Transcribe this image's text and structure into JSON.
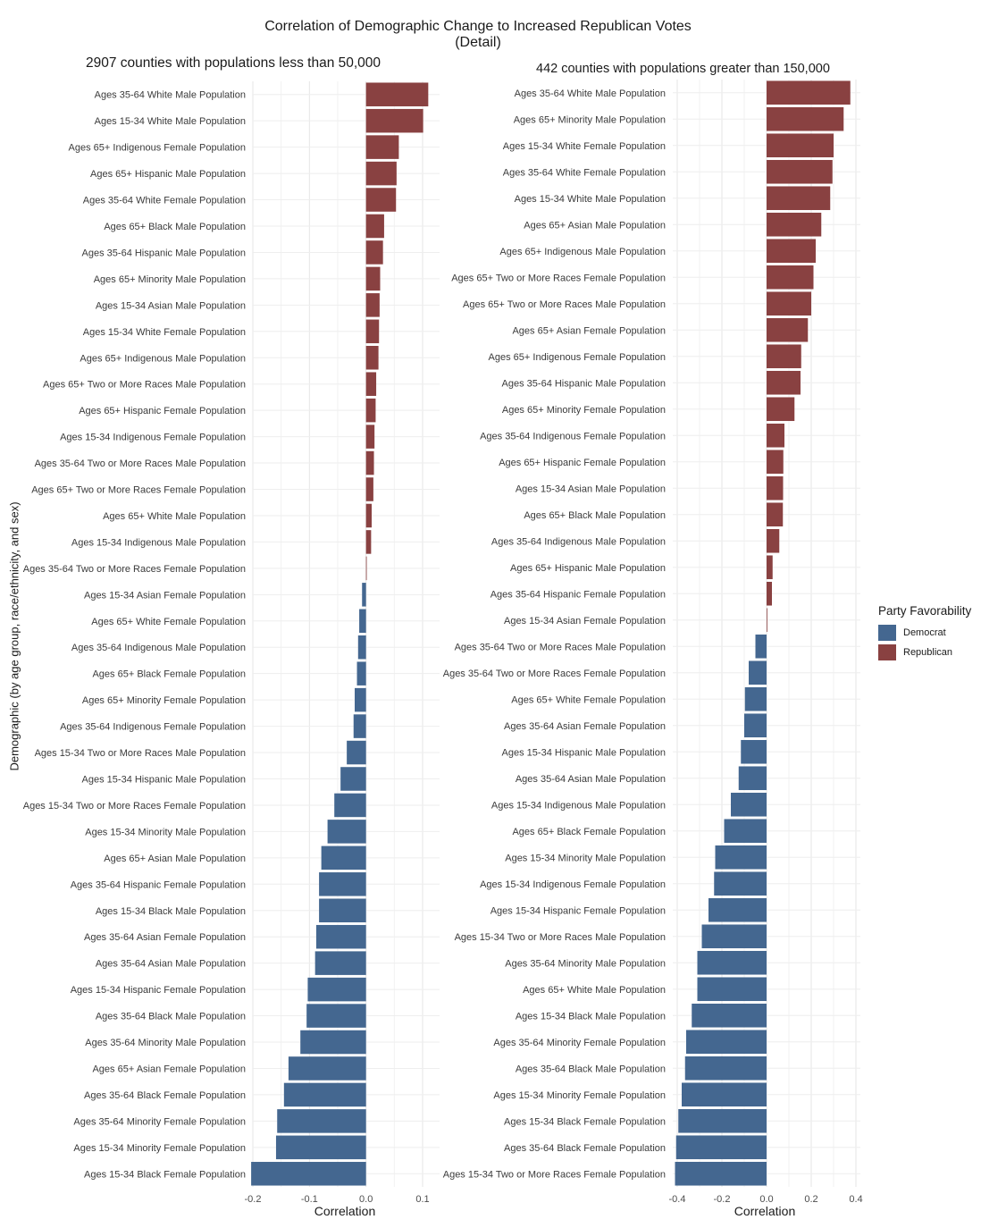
{
  "title": "Correlation of Demographic Change to Increased Republican Votes",
  "subtitle": "(Detail)",
  "ylabel": "Demographic (by age group, race/ethnicity, and sex)",
  "legend": {
    "title": "Party Favorability",
    "items": [
      {
        "label": "Democrat",
        "color": "#446790"
      },
      {
        "label": "Republican",
        "color": "#894141"
      }
    ]
  },
  "chart_data": [
    {
      "type": "bar",
      "orientation": "horizontal",
      "title": "2907 counties with populations less than 50,000",
      "xlabel": "Correlation",
      "xlim": [
        -0.2,
        0.13
      ],
      "xticks": [
        -0.2,
        -0.1,
        0.0,
        0.1
      ],
      "xtick_labels": [
        "-0.2",
        "-0.1",
        "0.0",
        "0.1"
      ],
      "categories": [
        "Ages 35-64 White Male Population",
        "Ages 15-34 White Male Population",
        "Ages 65+ Indigenous Female Population",
        "Ages 65+ Hispanic Male Population",
        "Ages 35-64 White Female Population",
        "Ages 65+ Black Male Population",
        "Ages 35-64 Hispanic Male Population",
        "Ages 65+ Minority Male Population",
        "Ages 15-34 Asian Male Population",
        "Ages 15-34 White Female Population",
        "Ages 65+ Indigenous Male Population",
        "Ages 65+ Two or More Races Male Population",
        "Ages 65+ Hispanic Female Population",
        "Ages 15-34 Indigenous Female Population",
        "Ages 35-64 Two or More Races Male Population",
        "Ages 65+ Two or More Races Female Population",
        "Ages 65+ White Male Population",
        "Ages 15-34 Indigenous Male Population",
        "Ages 35-64 Two or More Races Female Population",
        "Ages 15-34 Asian Female Population",
        "Ages 65+ White Female Population",
        "Ages 35-64 Indigenous Male Population",
        "Ages 65+ Black Female Population",
        "Ages 65+ Minority Female Population",
        "Ages 35-64 Indigenous Female Population",
        "Ages 15-34 Two or More Races Male Population",
        "Ages 15-34 Hispanic Male Population",
        "Ages 15-34 Two or More Races Female Population",
        "Ages 15-34 Minority Male Population",
        "Ages 65+ Asian Male Population",
        "Ages 35-64 Hispanic Female Population",
        "Ages 15-34 Black Male Population",
        "Ages 35-64 Asian Female Population",
        "Ages 35-64 Asian Male Population",
        "Ages 15-34 Hispanic Female Population",
        "Ages 35-64 Black Male Population",
        "Ages 35-64 Minority Male Population",
        "Ages 65+ Asian Female Population",
        "Ages 35-64 Black Female Population",
        "Ages 35-64 Minority Female Population",
        "Ages 15-34 Minority Female Population",
        "Ages 15-34 Black Female Population"
      ],
      "values": [
        0.11,
        0.101,
        0.058,
        0.054,
        0.053,
        0.032,
        0.03,
        0.025,
        0.024,
        0.023,
        0.022,
        0.018,
        0.017,
        0.015,
        0.014,
        0.013,
        0.01,
        0.009,
        0.001,
        -0.007,
        -0.012,
        -0.014,
        -0.016,
        -0.02,
        -0.022,
        -0.034,
        -0.045,
        -0.056,
        -0.068,
        -0.079,
        -0.083,
        -0.083,
        -0.088,
        -0.09,
        -0.103,
        -0.105,
        -0.116,
        -0.137,
        -0.145,
        -0.157,
        -0.159,
        -0.203
      ]
    },
    {
      "type": "bar",
      "orientation": "horizontal",
      "title": "442 counties with populations greater than 150,000",
      "xlabel": "Correlation",
      "xlim": [
        -0.42,
        0.42
      ],
      "xticks": [
        -0.4,
        -0.2,
        0.0,
        0.2,
        0.4
      ],
      "xtick_labels": [
        "-0.4",
        "-0.2",
        "0.0",
        "0.2",
        "0.4"
      ],
      "categories": [
        "Ages 35-64 White Male Population",
        "Ages 65+ Minority Male Population",
        "Ages 15-34 White Female Population",
        "Ages 35-64 White Female Population",
        "Ages 15-34 White Male Population",
        "Ages 65+ Asian Male Population",
        "Ages 65+ Indigenous Male Population",
        "Ages 65+ Two or More Races Female Population",
        "Ages 65+ Two or More Races Male Population",
        "Ages 65+ Asian Female Population",
        "Ages 65+ Indigenous Female Population",
        "Ages 35-64 Hispanic Male Population",
        "Ages 65+ Minority Female Population",
        "Ages 35-64 Indigenous Female Population",
        "Ages 65+ Hispanic Female Population",
        "Ages 15-34 Asian Male Population",
        "Ages 65+ Black Male Population",
        "Ages 35-64 Indigenous Male Population",
        "Ages 65+ Hispanic Male Population",
        "Ages 35-64 Hispanic Female Population",
        "Ages 15-34 Asian Female Population",
        "Ages 35-64 Two or More Races Male Population",
        "Ages 35-64 Two or More Races Female Population",
        "Ages 65+ White Female Population",
        "Ages 35-64 Asian Female Population",
        "Ages 15-34 Hispanic Male Population",
        "Ages 35-64 Asian Male Population",
        "Ages 15-34 Indigenous Male Population",
        "Ages 65+ Black Female Population",
        "Ages 15-34 Minority Male Population",
        "Ages 15-34 Indigenous Female Population",
        "Ages 15-34 Hispanic Female Population",
        "Ages 15-34 Two or More Races Male Population",
        "Ages 35-64 Minority Male Population",
        "Ages 65+ White Male Population",
        "Ages 15-34 Black Male Population",
        "Ages 35-64 Minority Female Population",
        "Ages 35-64 Black Male Population",
        "Ages 15-34 Minority Female Population",
        "Ages 15-34 Black Female Population",
        "Ages 35-64 Black Female Population",
        "Ages 15-34 Two or More Races Female Population"
      ],
      "values": [
        0.375,
        0.345,
        0.3,
        0.295,
        0.285,
        0.245,
        0.22,
        0.21,
        0.2,
        0.185,
        0.155,
        0.152,
        0.125,
        0.08,
        0.075,
        0.074,
        0.073,
        0.057,
        0.027,
        0.024,
        0.001,
        -0.05,
        -0.08,
        -0.097,
        -0.1,
        -0.115,
        -0.125,
        -0.16,
        -0.19,
        -0.23,
        -0.235,
        -0.26,
        -0.29,
        -0.31,
        -0.31,
        -0.335,
        -0.36,
        -0.365,
        -0.38,
        -0.395,
        -0.405,
        -0.41
      ]
    }
  ]
}
